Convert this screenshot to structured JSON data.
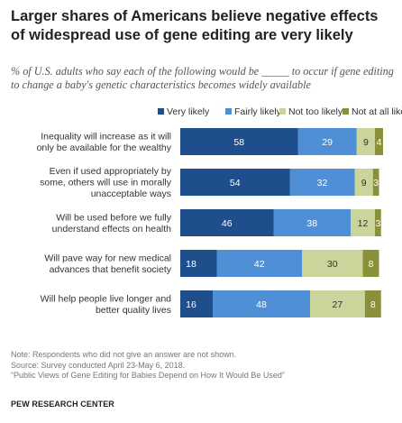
{
  "title": "Larger shares of Americans believe negative effects of widespread use of gene editing are very likely",
  "subtitle": "% of U.S. adults who say each of the following would be _____ to occur if gene editing to change a baby's genetic characteristics becomes widely available",
  "legend": [
    {
      "name": "Very likely",
      "color": "#1f4e8c"
    },
    {
      "name": "Fairly likely",
      "color": "#4f8fd6"
    },
    {
      "name": "Not too likely",
      "color": "#c9d59a"
    },
    {
      "name": "Not at all likely",
      "color": "#8a8f3a"
    }
  ],
  "chart_data": {
    "type": "bar",
    "orientation": "horizontal",
    "stacked": true,
    "categories": [
      "Inequality will increase as it will only be available for the wealthy",
      "Even if used appropriately by some, others will use in morally unacceptable ways",
      "Will be used before we fully understand effects on health",
      "Will pave way for new medical advances that benefit society",
      "Will help people live longer and better quality lives"
    ],
    "category_lines": [
      [
        "Inequality will increase as it will",
        "only be available  for the wealthy"
      ],
      [
        "Even if used appropriately by",
        "some, others will use in morally",
        "unacceptable ways"
      ],
      [
        "Will be used before we fully",
        "understand effects on health"
      ],
      [
        "Will pave way for new medical",
        "advances that benefit society"
      ],
      [
        "Will help people live longer and",
        "better quality lives"
      ]
    ],
    "series": [
      {
        "name": "Very likely",
        "values": [
          58,
          54,
          46,
          18,
          16
        ]
      },
      {
        "name": "Fairly likely",
        "values": [
          29,
          32,
          38,
          42,
          48
        ]
      },
      {
        "name": "Not too likely",
        "values": [
          9,
          9,
          12,
          30,
          27
        ]
      },
      {
        "name": "Not at all likely",
        "values": [
          4,
          3,
          3,
          8,
          8
        ]
      }
    ],
    "xlim": [
      0,
      100
    ],
    "grid": false
  },
  "notes": [
    "Note: Respondents who did not give an answer are not shown.",
    "Source: Survey conducted April 23-May 6, 2018.",
    "“Public Views of Gene Editing for Babies Depend on How It Would Be Used”"
  ],
  "brand": "PEW RESEARCH CENTER"
}
